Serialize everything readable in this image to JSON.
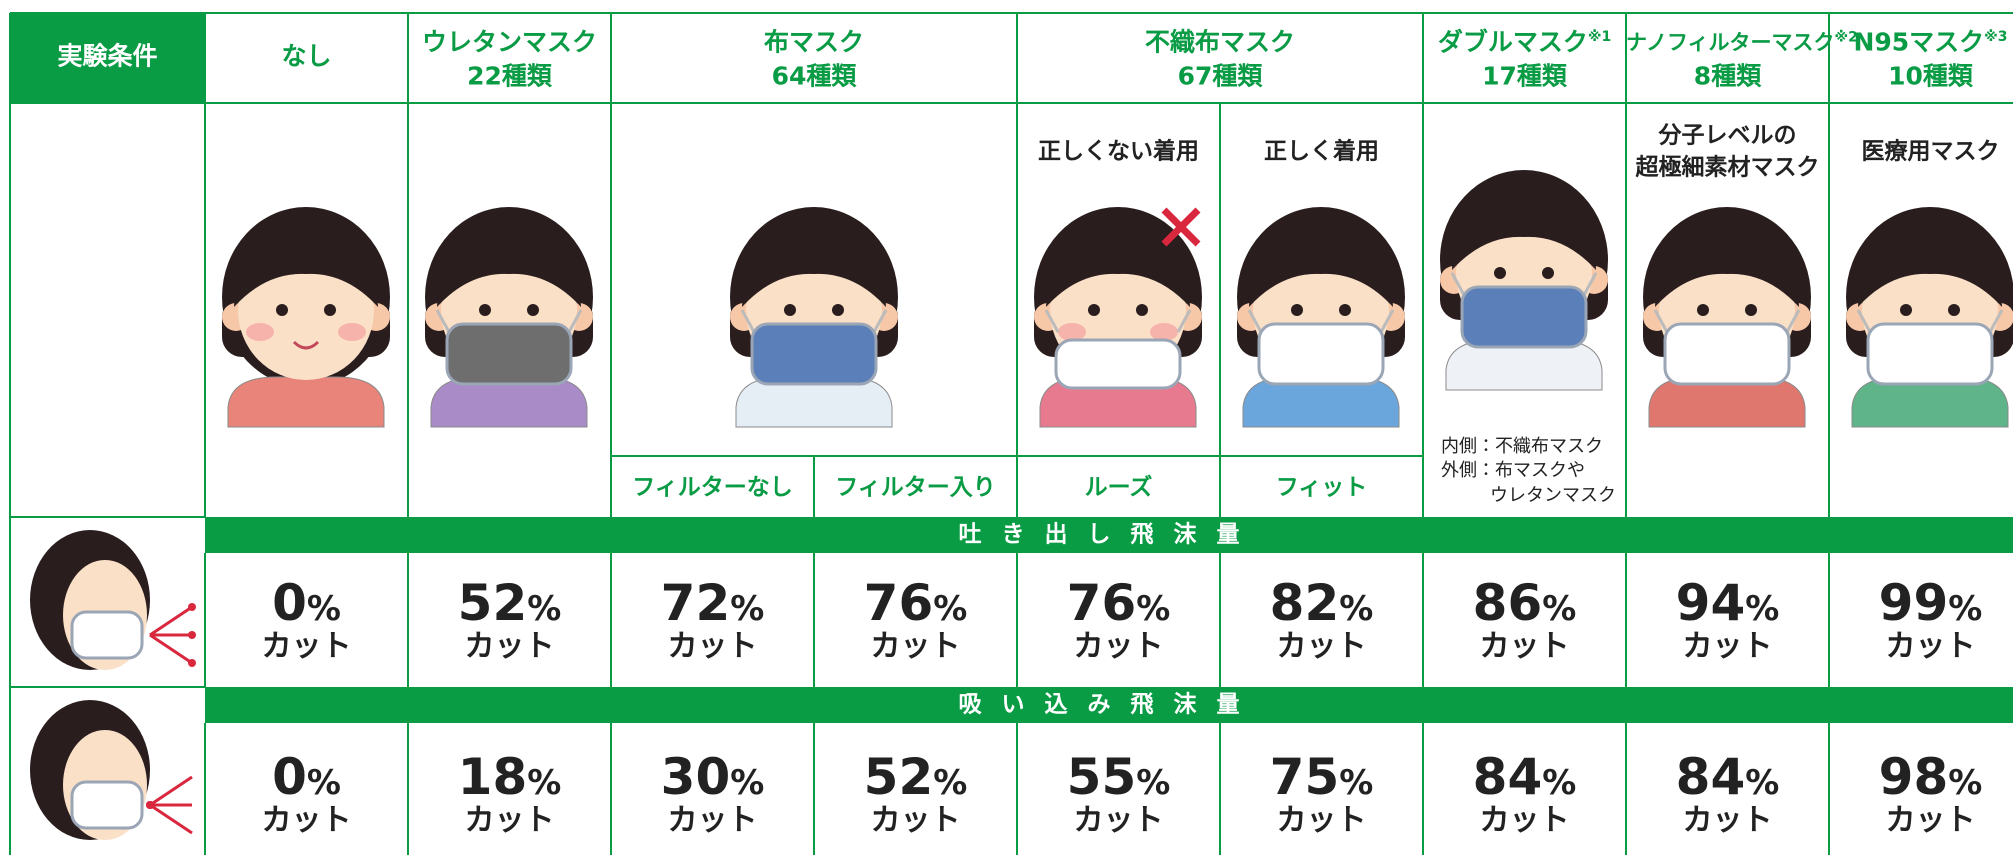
{
  "header": {
    "condition": "実験条件",
    "columns": [
      {
        "name": "なし"
      },
      {
        "name": "ウレタンマスク",
        "count": "22種類"
      },
      {
        "name": "布マスク",
        "count": "64種類"
      },
      {
        "name": "不織布マスク",
        "count": "67種類"
      },
      {
        "name": "ダブルマスク",
        "note": "※1",
        "count": "17種類"
      },
      {
        "name": "ナノフィルターマスク",
        "note": "※2",
        "count": "8種類"
      },
      {
        "name": "N95マスク",
        "note": "※3",
        "count": "10種類"
      }
    ]
  },
  "captions": {
    "nonwoven_wrong": "正しくない着用",
    "nonwoven_right": "正しく着用",
    "nano": [
      "分子レベルの",
      "超極細素材マスク"
    ],
    "n95": "医療用マスク",
    "double_note": [
      "内側：不織布マスク",
      "外側：布マスクや",
      "ウレタンマスク"
    ]
  },
  "sublabels": [
    "フィルターなし",
    "フィルター入り",
    "ルーズ",
    "フィット"
  ],
  "exhale": {
    "label": "吐き出し飛沫量",
    "values": [
      0,
      52,
      72,
      76,
      76,
      82,
      86,
      94,
      99
    ]
  },
  "inhale": {
    "label": "吸い込み飛沫量",
    "values": [
      0,
      18,
      30,
      52,
      55,
      75,
      84,
      84,
      98
    ]
  },
  "percent": "%",
  "cut": "カット"
}
